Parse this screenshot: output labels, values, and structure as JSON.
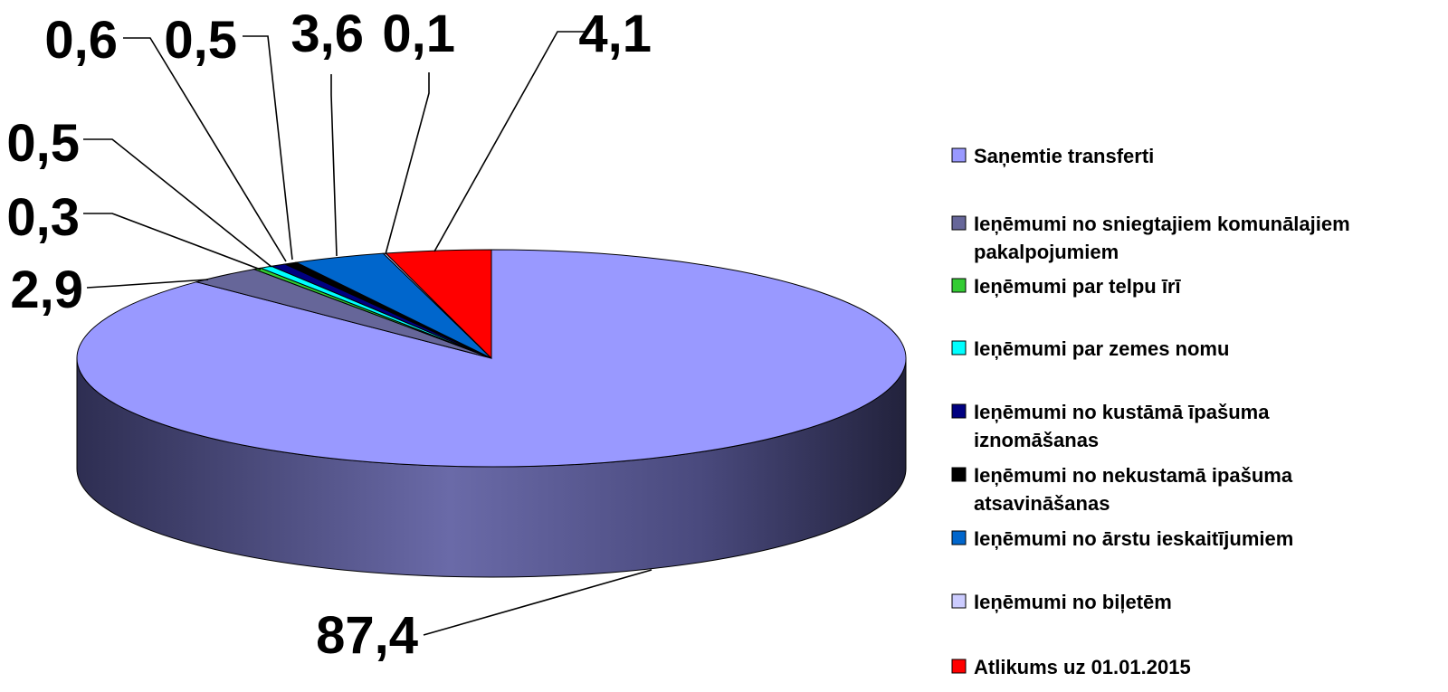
{
  "chart_data": {
    "type": "pie",
    "title": "",
    "series": [
      {
        "name": "Saņemtie transferti",
        "value": 87.4,
        "label": "87,4",
        "color": "#9999ff"
      },
      {
        "name": "Ieņēmumi no sniegtajiem komunālajiem pakalpojumiem",
        "value": 2.9,
        "label": "2,9",
        "color": "#666699"
      },
      {
        "name": "Ieņēmumi par telpu īrī",
        "value": 0.3,
        "label": "0,3",
        "color": "#33cc33"
      },
      {
        "name": "Ieņēmumi par zemes nomu",
        "value": 0.5,
        "label": "0,5",
        "color": "#00ffff"
      },
      {
        "name": "Ieņēmumi no kustāmā īpašuma iznomāšanas",
        "value": 0.6,
        "label": "0,6",
        "color": "#000080"
      },
      {
        "name": "Ieņēmumi no nekustamā ipašuma atsavināšanas",
        "value": 0.5,
        "label": "0,5",
        "color": "#000000"
      },
      {
        "name": "Ieņēmumi no ārstu ieskaitījumiem",
        "value": 3.6,
        "label": "3,6",
        "color": "#0066cc"
      },
      {
        "name": "Ieņēmumi no biļetēm",
        "value": 0.1,
        "label": "0,1",
        "color": "#ccccff"
      },
      {
        "name": "Atlikums uz 01.01.2015",
        "value": 4.1,
        "label": "4,1",
        "color": "#ff0000"
      }
    ],
    "legend": {
      "position": "right",
      "lines": [
        [
          "Saņemtie transferti"
        ],
        [
          "Ieņēmumi no sniegtajiem komunālajiem",
          "pakalpojumiem"
        ],
        [
          "Ieņēmumi par telpu īrī"
        ],
        [
          "Ieņēmumi par zemes nomu"
        ],
        [
          "Ieņēmumi no kustāmā īpašuma",
          "iznomāšanas"
        ],
        [
          "Ieņēmumi no nekustamā ipašuma",
          "atsavināšanas"
        ],
        [
          "Ieņēmumi no ārstu ieskaitījumiem"
        ],
        [
          "Ieņēmumi no biļetēm"
        ],
        [
          "Atlikums uz 01.01.2015"
        ]
      ]
    },
    "start_angle_deg": -90,
    "direction": "clockwise",
    "style": "3d"
  }
}
